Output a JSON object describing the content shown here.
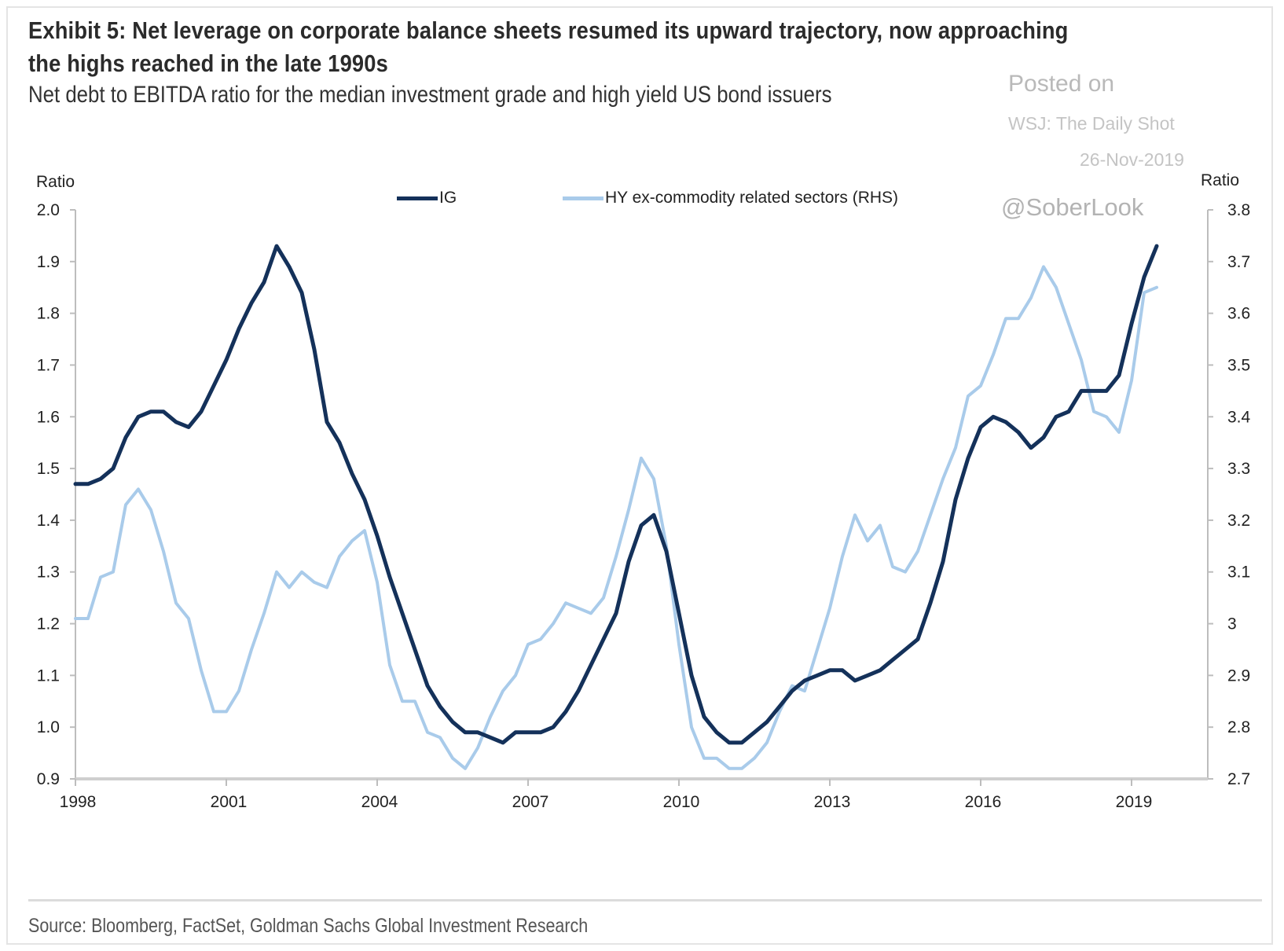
{
  "header": {
    "title": "Exhibit 5: Net leverage on corporate balance sheets resumed its upward trajectory, now approaching the highs reached in the late 1990s",
    "subtitle": "Net debt to EBITDA ratio for the median investment grade and high yield US bond issuers"
  },
  "watermark": {
    "posted": "Posted on",
    "outlet": "WSJ: The Daily Shot",
    "date": "26-Nov-2019",
    "handle": "@SoberLook"
  },
  "footer": {
    "source": "Source: Bloomberg, FactSet, Goldman Sachs Global Investment Research"
  },
  "colors": {
    "ig": "#14315a",
    "hy": "#a9cbea",
    "axis": "#bdbdbd"
  },
  "chart_data": {
    "type": "line",
    "title": "Exhibit 5: Net leverage on corporate balance sheets resumed its upward trajectory, now approaching the highs reached in the late 1990s",
    "subtitle": "Net debt to EBITDA ratio for the median investment grade and high yield US bond issuers",
    "xlabel": "",
    "ylabel": "Ratio",
    "y2label": "Ratio",
    "frequency": "quarterly",
    "x_start": "1998Q1",
    "x_end": "2019Q3",
    "xlim": [
      1998,
      2019.6
    ],
    "x_ticks": [
      1998,
      2001,
      2004,
      2007,
      2010,
      2013,
      2016,
      2019
    ],
    "x_tick_labels": [
      "1998",
      "2001",
      "2004",
      "2007",
      "2010",
      "2013",
      "2016",
      "2019"
    ],
    "ylim": [
      0.9,
      2.0
    ],
    "y_ticks": [
      0.9,
      1.0,
      1.1,
      1.2,
      1.3,
      1.4,
      1.5,
      1.6,
      1.7,
      1.8,
      1.9,
      2.0
    ],
    "y_tick_labels": [
      "0.9",
      "1.0",
      "1.1",
      "1.2",
      "1.3",
      "1.4",
      "1.5",
      "1.6",
      "1.7",
      "1.8",
      "1.9",
      "2.0"
    ],
    "y2lim": [
      2.7,
      3.8
    ],
    "y2_ticks": [
      2.7,
      2.8,
      2.9,
      3.0,
      3.1,
      3.2,
      3.3,
      3.4,
      3.5,
      3.6,
      3.7,
      3.8
    ],
    "y2_tick_labels": [
      "2.7",
      "2.8",
      "2.9",
      "3",
      "3.1",
      "3.2",
      "3.3",
      "3.4",
      "3.5",
      "3.6",
      "3.7",
      "3.8"
    ],
    "grid": false,
    "legend_position": "top-center",
    "series": [
      {
        "name": "IG",
        "legend_label": "IG",
        "axis": "left",
        "values": [
          1.47,
          1.47,
          1.48,
          1.5,
          1.56,
          1.6,
          1.61,
          1.61,
          1.59,
          1.58,
          1.61,
          1.66,
          1.71,
          1.77,
          1.82,
          1.86,
          1.93,
          1.89,
          1.84,
          1.73,
          1.59,
          1.55,
          1.49,
          1.44,
          1.37,
          1.29,
          1.22,
          1.15,
          1.08,
          1.04,
          1.01,
          0.99,
          0.99,
          0.98,
          0.97,
          0.99,
          0.99,
          0.99,
          1.0,
          1.03,
          1.07,
          1.12,
          1.17,
          1.22,
          1.32,
          1.39,
          1.41,
          1.34,
          1.22,
          1.1,
          1.02,
          0.99,
          0.97,
          0.97,
          0.99,
          1.01,
          1.04,
          1.07,
          1.09,
          1.1,
          1.11,
          1.11,
          1.09,
          1.1,
          1.11,
          1.13,
          1.15,
          1.17,
          1.24,
          1.32,
          1.44,
          1.52,
          1.58,
          1.6,
          1.59,
          1.57,
          1.54,
          1.56,
          1.6,
          1.61,
          1.65,
          1.65,
          1.65,
          1.68,
          1.78,
          1.87,
          1.93
        ]
      },
      {
        "name": "HY ex-commodity related sectors (RHS)",
        "legend_label": "HY ex-commodity related sectors (RHS)",
        "axis": "right",
        "values": [
          3.01,
          3.01,
          3.09,
          3.1,
          3.23,
          3.26,
          3.22,
          3.14,
          3.04,
          3.01,
          2.91,
          2.83,
          2.83,
          2.87,
          2.95,
          3.02,
          3.1,
          3.07,
          3.1,
          3.08,
          3.07,
          3.13,
          3.16,
          3.18,
          3.08,
          2.92,
          2.85,
          2.85,
          2.79,
          2.78,
          2.74,
          2.72,
          2.76,
          2.82,
          2.87,
          2.9,
          2.96,
          2.97,
          3.0,
          3.04,
          3.03,
          3.02,
          3.05,
          3.13,
          3.22,
          3.32,
          3.28,
          3.15,
          2.96,
          2.8,
          2.74,
          2.74,
          2.72,
          2.72,
          2.74,
          2.77,
          2.83,
          2.88,
          2.87,
          2.95,
          3.03,
          3.13,
          3.21,
          3.16,
          3.19,
          3.11,
          3.1,
          3.14,
          3.21,
          3.28,
          3.34,
          3.44,
          3.46,
          3.52,
          3.59,
          3.59,
          3.63,
          3.69,
          3.65,
          3.58,
          3.51,
          3.41,
          3.4,
          3.37,
          3.47,
          3.64,
          3.65
        ]
      }
    ]
  }
}
